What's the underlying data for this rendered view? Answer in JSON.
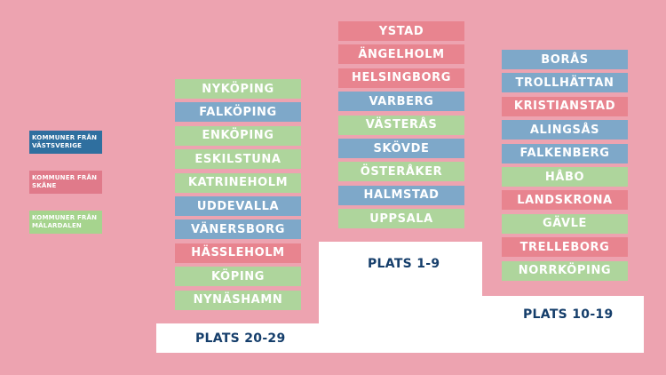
{
  "colors": {
    "background": "#eda3b0",
    "blue": "#7ea8c9",
    "pink": "#e8848f",
    "green": "#aed59c",
    "podium": "#ffffff",
    "label": "#153e6b"
  },
  "legend": [
    {
      "text": "KOMMUNER FRÅN VÄSTSVERIGE",
      "line1": "KOMMUNER FRÅN",
      "line2": "VÄSTSVERIGE",
      "color_key": "legend_blue",
      "color": "#2f6f9f"
    },
    {
      "text": "KOMMUNER FRÅN SKÅNE",
      "line1": "KOMMUNER FRÅN",
      "line2": "SKÅNE",
      "color_key": "legend_pink",
      "color": "#e07a8a"
    },
    {
      "text": "KOMMUNER FRÅN MÄLARDALEN",
      "line1": "KOMMUNER FRÅN",
      "line2": "MÄLARDALEN",
      "color_key": "legend_green",
      "color": "#a6d48e"
    }
  ],
  "columns": [
    {
      "id": "plats-1-9",
      "label": "PLATS 1-9",
      "items": [
        {
          "name": "YSTAD",
          "region": "pink"
        },
        {
          "name": "ÄNGELHOLM",
          "region": "pink"
        },
        {
          "name": "HELSINGBORG",
          "region": "pink"
        },
        {
          "name": "VARBERG",
          "region": "blue"
        },
        {
          "name": "VÄSTERÅS",
          "region": "green"
        },
        {
          "name": "SKÖVDE",
          "region": "blue"
        },
        {
          "name": "ÖSTERÅKER",
          "region": "green"
        },
        {
          "name": "HALMSTAD",
          "region": "blue"
        },
        {
          "name": "UPPSALA",
          "region": "green"
        }
      ]
    },
    {
      "id": "plats-10-19",
      "label": "PLATS 10-19",
      "items": [
        {
          "name": "BORÅS",
          "region": "blue"
        },
        {
          "name": "TROLLHÄTTAN",
          "region": "blue"
        },
        {
          "name": "KRISTIANSTAD",
          "region": "pink"
        },
        {
          "name": "ALINGSÅS",
          "region": "blue"
        },
        {
          "name": "FALKENBERG",
          "region": "blue"
        },
        {
          "name": "HÅBO",
          "region": "green"
        },
        {
          "name": "LANDSKRONA",
          "region": "pink"
        },
        {
          "name": "GÄVLE",
          "region": "green"
        },
        {
          "name": "TRELLEBORG",
          "region": "pink"
        },
        {
          "name": "NORRKÖPING",
          "region": "green"
        }
      ]
    },
    {
      "id": "plats-20-29",
      "label": "PLATS 20-29",
      "items": [
        {
          "name": "NYKÖPING",
          "region": "green"
        },
        {
          "name": "FALKÖPING",
          "region": "blue"
        },
        {
          "name": "ENKÖPING",
          "region": "green"
        },
        {
          "name": "ESKILSTUNA",
          "region": "green"
        },
        {
          "name": "KATRINEHOLM",
          "region": "green"
        },
        {
          "name": "UDDEVALLA",
          "region": "blue"
        },
        {
          "name": "VÄNERSBORG",
          "region": "blue"
        },
        {
          "name": "HÄSSLEHOLM",
          "region": "pink"
        },
        {
          "name": "KÖPING",
          "region": "green"
        },
        {
          "name": "NYNÄSHAMN",
          "region": "green"
        }
      ]
    }
  ]
}
